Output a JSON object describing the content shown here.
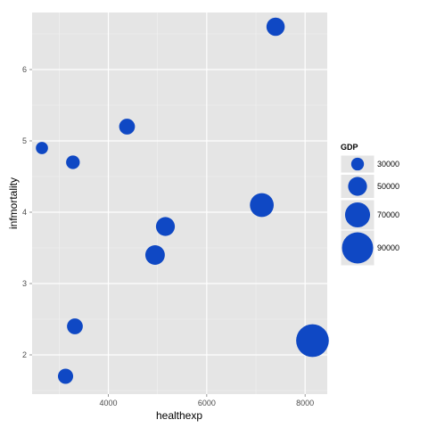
{
  "chart_data": {
    "type": "scatter",
    "title": "",
    "xlabel": "healthexp",
    "ylabel": "infmortality",
    "xlim": [
      2450,
      8450
    ],
    "ylim": [
      1.45,
      6.8
    ],
    "x_ticks": [
      4000,
      6000,
      8000
    ],
    "y_ticks": [
      2,
      3,
      4,
      5,
      6
    ],
    "grid": true,
    "legend": {
      "title": "GDP",
      "placement": "right",
      "entries": [
        {
          "label": "30000",
          "value": 30000
        },
        {
          "label": "50000",
          "value": 50000
        },
        {
          "label": "70000",
          "value": 70000
        },
        {
          "label": "90000",
          "value": 90000
        }
      ]
    },
    "size_variable": "GDP",
    "point_color": "#0f48c4",
    "panel_color": "#e5e5e5",
    "points": [
      {
        "x": 7400,
        "y": 6.6,
        "gdp": 48000
      },
      {
        "x": 2650,
        "y": 4.9,
        "gdp": 28000
      },
      {
        "x": 4380,
        "y": 5.2,
        "gdp": 40000
      },
      {
        "x": 3280,
        "y": 4.7,
        "gdp": 33000
      },
      {
        "x": 7120,
        "y": 4.1,
        "gdp": 66000
      },
      {
        "x": 5160,
        "y": 3.8,
        "gdp": 50000
      },
      {
        "x": 4950,
        "y": 3.4,
        "gdp": 52000
      },
      {
        "x": 3320,
        "y": 2.4,
        "gdp": 40000
      },
      {
        "x": 3130,
        "y": 1.7,
        "gdp": 38000
      },
      {
        "x": 8150,
        "y": 2.2,
        "gdp": 95000
      }
    ]
  }
}
